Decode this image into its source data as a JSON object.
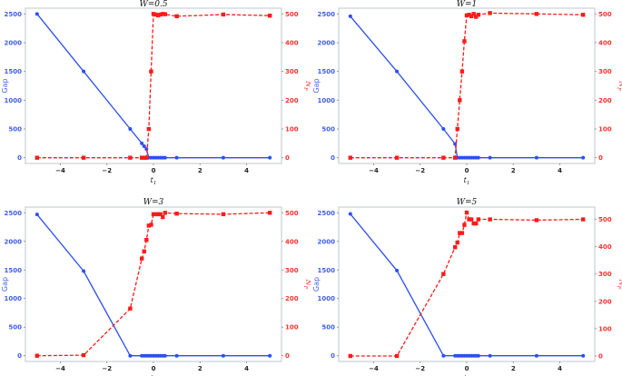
{
  "figure": {
    "panels_layout": "2x2"
  },
  "chart_data": [
    {
      "type": "line",
      "title": "W = 0.5",
      "xlabel": "t1",
      "ylabel": "Gap",
      "ylabel_right": "N_F",
      "xlim": [
        -5.5,
        5.5
      ],
      "ylim": [
        -100,
        2600
      ],
      "ylim_right": [
        -20,
        520
      ],
      "xticks": [
        -4,
        -2,
        0,
        2,
        4
      ],
      "yticks": [
        0,
        500,
        1000,
        1500,
        2000,
        2500
      ],
      "yticks_right": [
        0,
        100,
        200,
        300,
        400,
        500
      ],
      "grid": false,
      "series": [
        {
          "name": "Gap",
          "axis": "left",
          "color": "#2b4ff0",
          "style": "solid",
          "marker": "circle",
          "x": [
            -5,
            -3,
            -1,
            -0.5,
            -0.4,
            -0.3,
            -0.2,
            -0.1,
            0,
            0.1,
            0.2,
            0.3,
            0.4,
            0.5,
            1,
            3,
            5
          ],
          "y": [
            2500,
            1500,
            500,
            250,
            200,
            150,
            0,
            0,
            0,
            0,
            0,
            0,
            0,
            0,
            0,
            0,
            0
          ]
        },
        {
          "name": "N_F",
          "axis": "right",
          "color": "#ff1a1a",
          "style": "dashed",
          "marker": "square",
          "x": [
            -5,
            -3,
            -1,
            -0.5,
            -0.4,
            -0.3,
            -0.2,
            -0.1,
            0,
            0.1,
            0.2,
            0.3,
            0.4,
            0.5,
            1,
            3,
            5
          ],
          "y": [
            0,
            0,
            0,
            0,
            0,
            0,
            100,
            300,
            500,
            498,
            495,
            498,
            500,
            499,
            492,
            498,
            494
          ]
        }
      ]
    },
    {
      "type": "line",
      "title": "W = 1",
      "xlabel": "t1",
      "ylabel": "Gap",
      "ylabel_right": "N_F",
      "xlim": [
        -5.5,
        5.5
      ],
      "ylim": [
        -100,
        2600
      ],
      "ylim_right": [
        -20,
        520
      ],
      "xticks": [
        -4,
        -2,
        0,
        2,
        4
      ],
      "yticks": [
        0,
        500,
        1000,
        1500,
        2000,
        2500
      ],
      "yticks_right": [
        0,
        100,
        200,
        300,
        400,
        500
      ],
      "grid": false,
      "series": [
        {
          "name": "Gap",
          "axis": "left",
          "color": "#2b4ff0",
          "style": "solid",
          "marker": "circle",
          "x": [
            -5,
            -3,
            -1,
            -0.5,
            -0.4,
            -0.3,
            -0.2,
            -0.1,
            0,
            0.1,
            0.2,
            0.3,
            0.4,
            0.5,
            1,
            3,
            5
          ],
          "y": [
            2460,
            1500,
            500,
            240,
            0,
            0,
            0,
            0,
            0,
            0,
            0,
            0,
            0,
            0,
            0,
            0,
            0
          ]
        },
        {
          "name": "N_F",
          "axis": "right",
          "color": "#ff1a1a",
          "style": "dashed",
          "marker": "square",
          "x": [
            -5,
            -3,
            -1,
            -0.5,
            -0.4,
            -0.3,
            -0.2,
            -0.1,
            0,
            0.1,
            0.2,
            0.3,
            0.4,
            0.5,
            1,
            3,
            5
          ],
          "y": [
            0,
            0,
            0,
            0,
            100,
            200,
            300,
            405,
            495,
            497,
            492,
            500,
            490,
            497,
            503,
            500,
            497
          ]
        }
      ]
    },
    {
      "type": "line",
      "title": "W = 3",
      "xlabel": "t1",
      "ylabel": "Gap",
      "ylabel_right": "N_F",
      "xlim": [
        -5.5,
        5.5
      ],
      "ylim": [
        -100,
        2600
      ],
      "ylim_right": [
        -20,
        520
      ],
      "xticks": [
        -4,
        -2,
        0,
        2,
        4
      ],
      "yticks": [
        0,
        500,
        1000,
        1500,
        2000,
        2500
      ],
      "yticks_right": [
        0,
        100,
        200,
        300,
        400,
        500
      ],
      "grid": false,
      "series": [
        {
          "name": "Gap",
          "axis": "left",
          "color": "#2b4ff0",
          "style": "solid",
          "marker": "circle",
          "x": [
            -5,
            -3,
            -1,
            -0.5,
            -0.4,
            -0.3,
            -0.2,
            -0.1,
            0,
            0.1,
            0.2,
            0.3,
            0.4,
            0.5,
            1,
            3,
            5
          ],
          "y": [
            2470,
            1480,
            0,
            0,
            0,
            0,
            0,
            0,
            0,
            0,
            0,
            0,
            0,
            0,
            0,
            0,
            0
          ]
        },
        {
          "name": "N_F",
          "axis": "right",
          "color": "#ff1a1a",
          "style": "dashed",
          "marker": "square",
          "x": [
            -5,
            -3,
            -1,
            -0.5,
            -0.4,
            -0.3,
            -0.2,
            -0.1,
            0,
            0.1,
            0.2,
            0.3,
            0.4,
            0.5,
            1,
            3,
            5
          ],
          "y": [
            0,
            2,
            165,
            340,
            365,
            405,
            455,
            458,
            495,
            495,
            495,
            495,
            485,
            500,
            497,
            495,
            500
          ]
        }
      ]
    },
    {
      "type": "line",
      "title": "W = 5",
      "xlabel": "t1",
      "ylabel": "Gap",
      "ylabel_right": "N_F",
      "xlim": [
        -5.5,
        5.5
      ],
      "ylim": [
        -100,
        2600
      ],
      "ylim_right": [
        -20,
        545
      ],
      "xticks": [
        -4,
        -2,
        0,
        2,
        4
      ],
      "yticks": [
        0,
        500,
        1000,
        1500,
        2000,
        2500
      ],
      "yticks_right": [
        0,
        100,
        200,
        300,
        400,
        500
      ],
      "grid": false,
      "series": [
        {
          "name": "Gap",
          "axis": "left",
          "color": "#2b4ff0",
          "style": "solid",
          "marker": "circle",
          "x": [
            -5,
            -3,
            -1,
            -0.5,
            -0.4,
            -0.3,
            -0.2,
            -0.1,
            0,
            0.1,
            0.2,
            0.3,
            0.4,
            0.5,
            1,
            3,
            5
          ],
          "y": [
            2480,
            1490,
            0,
            0,
            0,
            0,
            0,
            0,
            0,
            0,
            0,
            0,
            0,
            0,
            0,
            0,
            0
          ]
        },
        {
          "name": "N_F",
          "axis": "right",
          "color": "#ff1a1a",
          "style": "dashed",
          "marker": "square",
          "x": [
            -5,
            -3,
            -1,
            -0.5,
            -0.4,
            -0.3,
            -0.2,
            -0.1,
            0,
            0.1,
            0.2,
            0.3,
            0.4,
            0.5,
            1,
            3,
            5
          ],
          "y": [
            0,
            0,
            300,
            398,
            415,
            450,
            450,
            480,
            525,
            500,
            500,
            485,
            485,
            500,
            500,
            497,
            500
          ]
        }
      ]
    }
  ]
}
